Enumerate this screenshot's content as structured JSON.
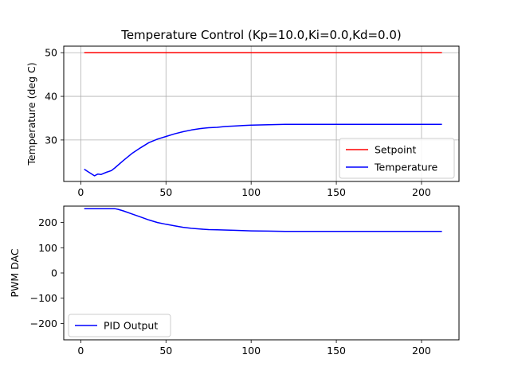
{
  "chart_data": [
    {
      "type": "line",
      "title": "Temperature Control (Kp=10.0,Ki=0.0,Kd=0.0)",
      "xlabel": "",
      "ylabel": "Temperature (deg C)",
      "xlim": [
        -10,
        222
      ],
      "ylim": [
        20.5,
        51.5
      ],
      "xticks": [
        0,
        50,
        100,
        150,
        200
      ],
      "yticks": [
        30,
        40,
        50
      ],
      "grid": true,
      "legend": "lower-right",
      "series": [
        {
          "name": "Setpoint",
          "color": "#ff0000",
          "x": [
            2,
            212
          ],
          "y": [
            50,
            50
          ]
        },
        {
          "name": "Temperature",
          "color": "#0000ff",
          "x": [
            2,
            4,
            6,
            8,
            10,
            12,
            15,
            18,
            20,
            25,
            30,
            35,
            40,
            45,
            50,
            55,
            60,
            65,
            70,
            75,
            80,
            85,
            90,
            95,
            100,
            110,
            120,
            130,
            140,
            150,
            160,
            170,
            180,
            190,
            200,
            205,
            212
          ],
          "y": [
            23.3,
            22.8,
            22.3,
            21.8,
            22.2,
            22.1,
            22.6,
            23.0,
            23.6,
            25.3,
            26.9,
            28.2,
            29.4,
            30.2,
            30.8,
            31.4,
            31.9,
            32.3,
            32.6,
            32.8,
            32.9,
            33.1,
            33.2,
            33.3,
            33.4,
            33.5,
            33.6,
            33.6,
            33.6,
            33.6,
            33.6,
            33.6,
            33.6,
            33.6,
            33.6,
            33.6,
            33.6
          ]
        }
      ]
    },
    {
      "type": "line",
      "title": "",
      "xlabel": "",
      "ylabel": "PWM DAC",
      "xlim": [
        -10,
        222
      ],
      "ylim": [
        -265,
        265
      ],
      "xticks": [
        0,
        50,
        100,
        150,
        200
      ],
      "yticks": [
        -200,
        -100,
        0,
        100,
        200
      ],
      "grid": false,
      "legend": "lower-left",
      "series": [
        {
          "name": "PID Output",
          "color": "#0000ff",
          "x": [
            2,
            10,
            20,
            22,
            25,
            30,
            35,
            40,
            45,
            50,
            55,
            60,
            65,
            70,
            75,
            80,
            90,
            100,
            110,
            120,
            130,
            140,
            150,
            160,
            170,
            180,
            190,
            200,
            205,
            212
          ],
          "y": [
            255,
            255,
            255,
            252,
            246,
            234,
            222,
            210,
            200,
            193,
            187,
            181,
            177,
            174,
            172,
            171,
            169,
            167,
            166,
            165,
            165,
            165,
            165,
            165,
            165,
            165,
            165,
            165,
            165,
            165
          ]
        }
      ]
    }
  ]
}
